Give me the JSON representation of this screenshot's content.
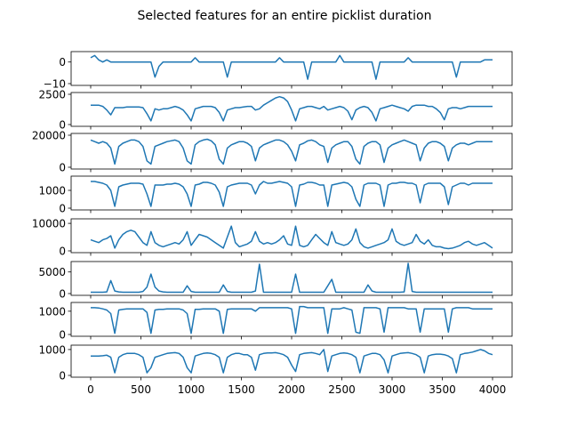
{
  "chart_data": {
    "type": "line",
    "title": "Selected features for an entire picklist duration",
    "line_color": "#1f77b4",
    "xlim": [
      0,
      4000
    ],
    "xticks": [
      0,
      500,
      1000,
      1500,
      2000,
      2500,
      3000,
      3500,
      4000
    ],
    "x": [
      0,
      40,
      80,
      120,
      160,
      200,
      240,
      280,
      320,
      360,
      400,
      440,
      480,
      520,
      560,
      600,
      640,
      680,
      720,
      760,
      800,
      840,
      880,
      920,
      960,
      1000,
      1040,
      1080,
      1120,
      1160,
      1200,
      1240,
      1280,
      1320,
      1360,
      1400,
      1440,
      1480,
      1520,
      1560,
      1600,
      1640,
      1680,
      1720,
      1760,
      1800,
      1840,
      1880,
      1920,
      1960,
      2000,
      2040,
      2080,
      2120,
      2160,
      2200,
      2240,
      2280,
      2320,
      2360,
      2400,
      2440,
      2480,
      2520,
      2560,
      2600,
      2640,
      2680,
      2720,
      2760,
      2800,
      2840,
      2880,
      2920,
      2960,
      3000,
      3040,
      3080,
      3120,
      3160,
      3200,
      3240,
      3280,
      3320,
      3360,
      3400,
      3440,
      3480,
      3520,
      3560,
      3600,
      3640,
      3680,
      3720,
      3760,
      3800,
      3840,
      3880,
      3920,
      3960,
      4000
    ],
    "panels": [
      {
        "yticks": [
          "0",
          "−10"
        ],
        "ytick_values": [
          0,
          -10
        ],
        "ylim": [
          -10,
          4
        ],
        "values": [
          2,
          3,
          1,
          0,
          1,
          0,
          0,
          0,
          0,
          0,
          0,
          0,
          0,
          0,
          0,
          0,
          -7,
          -2,
          0,
          0,
          0,
          0,
          0,
          0,
          0,
          0,
          2,
          0,
          0,
          0,
          0,
          0,
          0,
          0,
          -7,
          0,
          0,
          0,
          0,
          0,
          0,
          0,
          0,
          0,
          0,
          0,
          0,
          2,
          0,
          0,
          0,
          0,
          0,
          0,
          -8,
          0,
          0,
          0,
          0,
          0,
          0,
          0,
          3,
          0,
          0,
          0,
          0,
          0,
          0,
          0,
          0,
          -8,
          0,
          0,
          0,
          0,
          0,
          0,
          0,
          2,
          0,
          0,
          0,
          0,
          0,
          0,
          0,
          0,
          0,
          0,
          0,
          -7,
          0,
          0,
          0,
          0,
          0,
          0,
          1,
          1,
          1
        ]
      },
      {
        "yticks": [
          "2500",
          "0"
        ],
        "ytick_values": [
          2500,
          0
        ],
        "ylim": [
          0,
          2500
        ],
        "values": [
          1600,
          1600,
          1600,
          1500,
          1200,
          800,
          1400,
          1400,
          1400,
          1450,
          1450,
          1450,
          1450,
          1400,
          900,
          300,
          1300,
          1200,
          1300,
          1300,
          1400,
          1500,
          1400,
          1200,
          800,
          300,
          1300,
          1400,
          1500,
          1500,
          1500,
          1400,
          1000,
          300,
          1200,
          1300,
          1400,
          1400,
          1450,
          1500,
          1500,
          1200,
          1300,
          1600,
          1800,
          2000,
          2200,
          2300,
          2200,
          1900,
          1200,
          300,
          1300,
          1400,
          1500,
          1500,
          1400,
          1300,
          1500,
          1200,
          1300,
          1400,
          1500,
          1400,
          1100,
          400,
          1200,
          1400,
          1500,
          1400,
          1000,
          300,
          1300,
          1400,
          1500,
          1600,
          1500,
          1400,
          1300,
          1100,
          1500,
          1600,
          1600,
          1600,
          1500,
          1500,
          1300,
          1000,
          400,
          1300,
          1400,
          1400,
          1300,
          1400,
          1500,
          1500,
          1500,
          1500,
          1500,
          1500,
          1500
        ]
      },
      {
        "yticks": [
          "20000",
          "0"
        ],
        "ytick_values": [
          20000,
          0
        ],
        "ylim": [
          0,
          20000
        ],
        "values": [
          17000,
          16000,
          15000,
          16000,
          15000,
          12000,
          2000,
          13000,
          15000,
          16000,
          17000,
          17000,
          16000,
          13000,
          4000,
          2000,
          13000,
          14000,
          15000,
          16000,
          16500,
          17000,
          16000,
          12000,
          4000,
          2000,
          14000,
          16000,
          17000,
          17500,
          16500,
          14000,
          5000,
          2000,
          12000,
          14000,
          15000,
          16000,
          16000,
          15000,
          13000,
          4000,
          12000,
          14000,
          15000,
          16000,
          17000,
          17000,
          16000,
          14000,
          10000,
          4000,
          14000,
          15000,
          16500,
          17000,
          16000,
          14000,
          13000,
          3000,
          12000,
          14000,
          15000,
          16000,
          16000,
          13000,
          5000,
          2000,
          13000,
          15000,
          16000,
          16000,
          14000,
          3000,
          12000,
          14000,
          15000,
          16000,
          17000,
          16000,
          15000,
          14000,
          4000,
          12000,
          15000,
          16000,
          16000,
          15000,
          13000,
          4000,
          12000,
          14000,
          15000,
          15000,
          14000,
          15000,
          16000,
          16000,
          16000,
          16000,
          16000
        ]
      },
      {
        "yticks": [
          "1000",
          "0"
        ],
        "ytick_values": [
          1000,
          0
        ],
        "ylim": [
          0,
          1700
        ],
        "values": [
          1500,
          1500,
          1450,
          1400,
          1300,
          1000,
          100,
          1200,
          1300,
          1350,
          1400,
          1400,
          1400,
          1350,
          800,
          100,
          1300,
          1300,
          1300,
          1350,
          1350,
          1400,
          1350,
          1200,
          800,
          100,
          1300,
          1350,
          1450,
          1450,
          1400,
          1300,
          900,
          100,
          1200,
          1300,
          1350,
          1400,
          1400,
          1400,
          1300,
          800,
          1300,
          1500,
          1400,
          1400,
          1450,
          1500,
          1450,
          1400,
          1200,
          100,
          1300,
          1350,
          1450,
          1450,
          1400,
          1300,
          1300,
          100,
          1300,
          1350,
          1400,
          1450,
          1400,
          1200,
          500,
          100,
          1300,
          1400,
          1400,
          1400,
          1300,
          100,
          1300,
          1400,
          1400,
          1450,
          1450,
          1400,
          1400,
          1300,
          300,
          1300,
          1400,
          1400,
          1400,
          1400,
          1200,
          200,
          1200,
          1300,
          1400,
          1400,
          1300,
          1400,
          1400,
          1400,
          1400,
          1400,
          1400
        ]
      },
      {
        "yticks": [
          "10000",
          "0"
        ],
        "ytick_values": [
          10000,
          0
        ],
        "ylim": [
          0,
          11000
        ],
        "values": [
          4000,
          3500,
          3000,
          4000,
          4500,
          5500,
          1000,
          4000,
          6000,
          7000,
          7500,
          7000,
          5000,
          3000,
          2000,
          7000,
          3000,
          2000,
          1500,
          2000,
          2500,
          3000,
          2500,
          4000,
          7000,
          2000,
          4000,
          6000,
          5500,
          5000,
          4000,
          3000,
          2000,
          1000,
          5000,
          9000,
          3000,
          1500,
          2000,
          2500,
          3500,
          7000,
          3500,
          2500,
          3000,
          2500,
          3000,
          4000,
          5500,
          2500,
          2000,
          9000,
          2000,
          1500,
          2000,
          4000,
          6000,
          4500,
          3000,
          2000,
          7000,
          3000,
          2500,
          2000,
          2500,
          4000,
          8000,
          3000,
          1500,
          1000,
          1500,
          2000,
          2500,
          3000,
          4000,
          8000,
          3500,
          2500,
          2000,
          2500,
          3000,
          6000,
          3500,
          2500,
          4000,
          2000,
          1500,
          1500,
          1000,
          800,
          1000,
          1500,
          2000,
          3000,
          3500,
          2500,
          2000,
          2500,
          3000,
          2000,
          1000
        ]
      },
      {
        "yticks": [
          "5000",
          "0"
        ],
        "ytick_values": [
          5000,
          0
        ],
        "ylim": [
          0,
          7000
        ],
        "values": [
          300,
          300,
          300,
          300,
          400,
          3000,
          600,
          400,
          300,
          300,
          300,
          300,
          300,
          500,
          1500,
          4500,
          1500,
          600,
          400,
          300,
          300,
          300,
          300,
          300,
          1800,
          500,
          300,
          300,
          300,
          300,
          300,
          300,
          300,
          2000,
          500,
          300,
          300,
          300,
          300,
          300,
          300,
          600,
          6800,
          300,
          300,
          300,
          300,
          300,
          300,
          300,
          300,
          4500,
          300,
          300,
          300,
          300,
          300,
          300,
          300,
          1800,
          3300,
          300,
          300,
          300,
          300,
          300,
          300,
          300,
          300,
          2000,
          600,
          300,
          300,
          300,
          300,
          300,
          300,
          300,
          400,
          7000,
          500,
          300,
          300,
          300,
          300,
          300,
          300,
          300,
          300,
          300,
          300,
          300,
          300,
          300,
          300,
          300,
          300,
          300,
          300,
          300,
          300
        ]
      },
      {
        "yticks": [
          "1000",
          "0"
        ],
        "ytick_values": [
          1000,
          0
        ],
        "ylim": [
          0,
          1300
        ],
        "values": [
          1150,
          1150,
          1140,
          1100,
          1050,
          900,
          50,
          1050,
          1080,
          1100,
          1100,
          1100,
          1100,
          1100,
          950,
          50,
          1050,
          1080,
          1080,
          1100,
          1100,
          1100,
          1100,
          1050,
          900,
          50,
          1080,
          1080,
          1100,
          1100,
          1100,
          1100,
          1000,
          50,
          1080,
          1100,
          1100,
          1100,
          1100,
          1100,
          1100,
          1000,
          1150,
          1150,
          1150,
          1150,
          1150,
          1150,
          1150,
          1150,
          1100,
          50,
          1200,
          1200,
          1150,
          1150,
          1150,
          1150,
          1150,
          50,
          1100,
          1100,
          1100,
          1150,
          1100,
          1050,
          100,
          50,
          1150,
          1150,
          1150,
          1150,
          1100,
          100,
          1150,
          1150,
          1150,
          1150,
          1150,
          1100,
          1100,
          1100,
          100,
          1100,
          1100,
          1100,
          1100,
          1100,
          1100,
          100,
          1100,
          1150,
          1150,
          1150,
          1150,
          1100,
          1100,
          1100,
          1100,
          1100,
          1100
        ]
      },
      {
        "yticks": [
          "1000",
          "0"
        ],
        "ytick_values": [
          1000,
          0
        ],
        "ylim": [
          0,
          1100
        ],
        "values": [
          750,
          750,
          750,
          760,
          780,
          700,
          100,
          700,
          800,
          850,
          850,
          850,
          800,
          700,
          100,
          300,
          700,
          750,
          800,
          850,
          870,
          880,
          850,
          700,
          300,
          100,
          750,
          800,
          850,
          870,
          850,
          800,
          700,
          100,
          700,
          800,
          850,
          850,
          800,
          800,
          700,
          200,
          800,
          850,
          870,
          870,
          880,
          850,
          800,
          700,
          400,
          150,
          800,
          850,
          870,
          880,
          850,
          800,
          1000,
          150,
          750,
          800,
          850,
          870,
          850,
          800,
          700,
          100,
          750,
          800,
          850,
          850,
          800,
          600,
          100,
          750,
          800,
          850,
          870,
          880,
          850,
          800,
          700,
          100,
          750,
          800,
          820,
          820,
          800,
          750,
          650,
          100,
          800,
          850,
          870,
          900,
          950,
          1000,
          950,
          850,
          800
        ]
      }
    ]
  }
}
